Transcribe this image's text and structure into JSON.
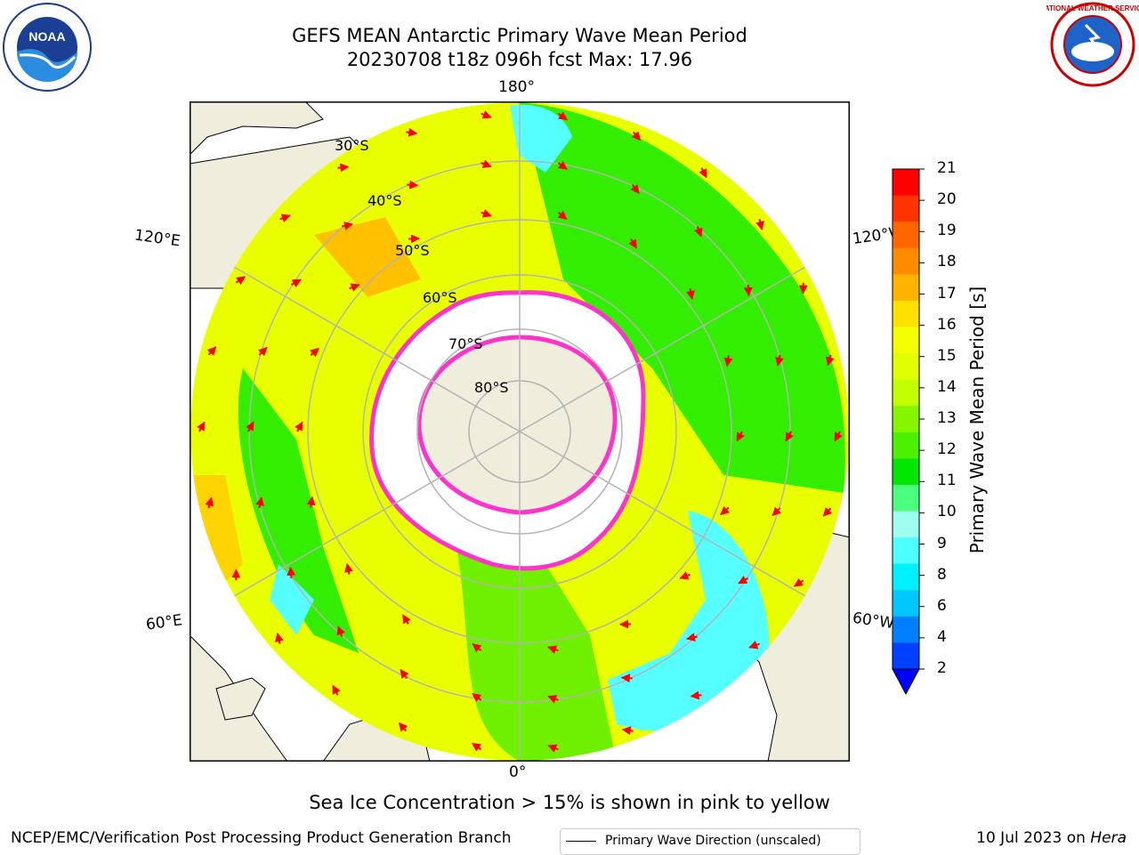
{
  "header": {
    "title_line1": "GEFS MEAN Antarctic Primary Wave Mean Period",
    "title_line2": "20230708 t18z 096h fcst   Max: 17.96"
  },
  "logos": {
    "left": "noaa-logo",
    "right": "national-weather-service-logo",
    "left_text": "NOAA",
    "right_text": "NATIONAL WEATHER SERVICE"
  },
  "map": {
    "projection": "south-polar-stereographic",
    "lon_labels": [
      "180°",
      "120°E",
      "120°W",
      "60°E",
      "60°W",
      "0°"
    ],
    "lat_labels": [
      "30°S",
      "40°S",
      "50°S",
      "60°S",
      "70°S",
      "80°S"
    ],
    "legend_label": "Primary Wave Direction (unscaled)"
  },
  "colorbar": {
    "label": "Primary Wave Mean Period [s]",
    "ticks": [
      "21",
      "20",
      "19",
      "18",
      "17",
      "16",
      "15",
      "14",
      "13",
      "12",
      "11",
      "10",
      "9",
      "8",
      "6",
      "4",
      "2"
    ],
    "colors": [
      "#ff0000",
      "#ff3300",
      "#ff6600",
      "#ff8c00",
      "#ffb300",
      "#ffe100",
      "#f5ff00",
      "#e0ff00",
      "#c4ff00",
      "#86f500",
      "#4cf000",
      "#00e600",
      "#4dff80",
      "#9efff0",
      "#4dffff",
      "#00f0ff",
      "#00c8ff",
      "#0080ff",
      "#0040ff"
    ],
    "extend_color": "#0000ff"
  },
  "note": "Sea Ice Concentration > 15% is shown in pink to yellow",
  "footer": {
    "left": "NCEP/EMC/Verification Post Processing Product Generation Branch",
    "date": "10 Jul 2023 on ",
    "host": "Hera"
  },
  "colors": {
    "land": "#efeedd",
    "ocean_yellow": "#e9ff00",
    "ocean_green": "#33ee00",
    "ocean_cyan": "#55ffff",
    "ice_edge": "#ff33cc",
    "arrow": "#ff0000",
    "grid": "#b3b3b3"
  }
}
